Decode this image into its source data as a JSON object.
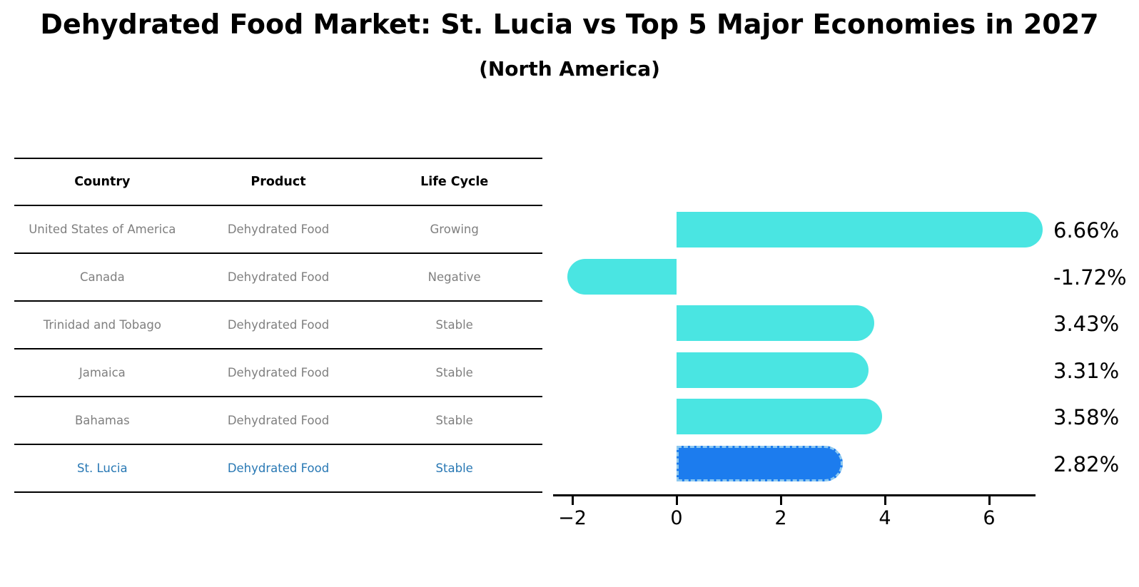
{
  "title": "Dehydrated Food Market: St. Lucia vs Top 5 Major Economies in 2027",
  "subtitle": "(North America)",
  "table": {
    "headers": [
      "Country",
      "Product",
      "Life Cycle"
    ],
    "rows": [
      {
        "country": "United States of America",
        "product": "Dehydrated Food",
        "life_cycle": "Growing",
        "highlight": false
      },
      {
        "country": "Canada",
        "product": "Dehydrated Food",
        "life_cycle": "Negative",
        "highlight": false
      },
      {
        "country": "Trinidad and Tobago",
        "product": "Dehydrated Food",
        "life_cycle": "Stable",
        "highlight": false
      },
      {
        "country": "Jamaica",
        "product": "Dehydrated Food",
        "life_cycle": "Stable",
        "highlight": false
      },
      {
        "country": "Bahamas",
        "product": "Dehydrated Food",
        "life_cycle": "Stable",
        "highlight": false
      },
      {
        "country": "St. Lucia",
        "product": "Dehydrated Food",
        "life_cycle": "Stable",
        "highlight": true
      }
    ]
  },
  "chart_data": {
    "type": "bar",
    "orientation": "horizontal",
    "title": "Dehydrated Food Market: St. Lucia vs Top 5 Major Economies in 2027",
    "subtitle": "(North America)",
    "categories": [
      "United States of America",
      "Canada",
      "Trinidad and Tobago",
      "Jamaica",
      "Bahamas",
      "St. Lucia"
    ],
    "values": [
      6.66,
      -1.72,
      3.43,
      3.31,
      3.58,
      2.82
    ],
    "bar_labels": [
      "6.66%",
      "-1.72%",
      "3.43%",
      "3.31%",
      "3.58%",
      "2.82%"
    ],
    "xticks": [
      -2,
      0,
      2,
      4,
      6
    ],
    "xtick_labels": [
      "−2",
      "0",
      "2",
      "4",
      "6"
    ],
    "xlim": [
      -2.4,
      6.9
    ],
    "highlight_index": 5,
    "grid": false,
    "legend": false
  },
  "colors": {
    "bar": "#4ae5e2",
    "highlight_bar": "#1c7cee",
    "highlight_border": "#8ec9f0",
    "highlight_text": "#2878b4",
    "row_text": "#7f7f7f",
    "header_text": "#000000",
    "axis": "#000000",
    "background": "#ffffff"
  }
}
